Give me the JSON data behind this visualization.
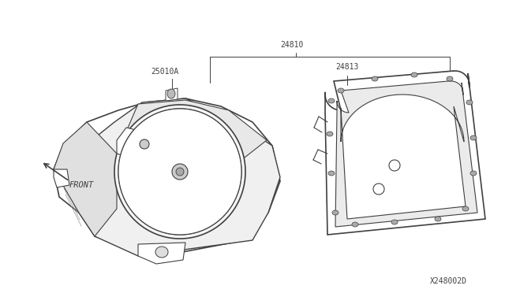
{
  "bg_color": "#ffffff",
  "line_color": "#404040",
  "text_color": "#404040",
  "diagram_id": "X248002D",
  "label_25010A": "25010A",
  "label_24810": "24810",
  "label_24813": "24813",
  "label_front": "FRONT",
  "font_size": 7
}
